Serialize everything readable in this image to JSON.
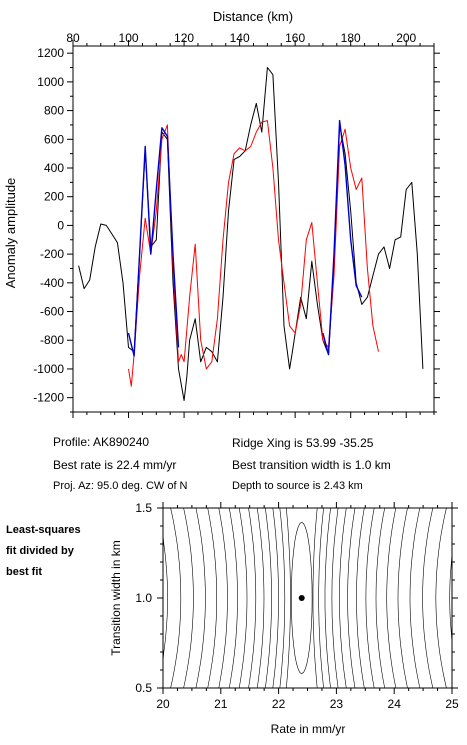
{
  "chart_data": [
    {
      "type": "line",
      "title": "",
      "xlabel": "Distance (km)",
      "ylabel": "Anomaly amplitude",
      "xlim": [
        80,
        210
      ],
      "ylim": [
        -1300,
        1250
      ],
      "x_axis_position": "top",
      "xticks": [
        80,
        100,
        120,
        140,
        160,
        180,
        200
      ],
      "yticks": [
        1200,
        1000,
        800,
        600,
        400,
        200,
        0,
        -200,
        -400,
        -600,
        -800,
        -1000,
        -1200
      ],
      "grid": false,
      "legend": "none",
      "series": [
        {
          "color": "#000000",
          "x": [
            82,
            84,
            86,
            88,
            90,
            92,
            94,
            96,
            98,
            100,
            102,
            104,
            106,
            108,
            110,
            112,
            114,
            116,
            118,
            120,
            121,
            122,
            124,
            126,
            128,
            130,
            132,
            134,
            136,
            138,
            140,
            142,
            144,
            146,
            148,
            150,
            152,
            154,
            156,
            158,
            159,
            160,
            162,
            164,
            166,
            168,
            170,
            172,
            174,
            176,
            178,
            180,
            182,
            184,
            186,
            188,
            190,
            192,
            194,
            196,
            198,
            200,
            202,
            204,
            206
          ],
          "y": [
            -280,
            -440,
            -380,
            -150,
            10,
            0,
            -60,
            -120,
            -400,
            -850,
            -880,
            -200,
            520,
            -150,
            -100,
            650,
            600,
            -400,
            -1000,
            -1220,
            -1050,
            -800,
            -650,
            -950,
            -850,
            -880,
            -950,
            -500,
            100,
            460,
            480,
            520,
            700,
            850,
            650,
            1100,
            1050,
            300,
            -700,
            -1000,
            -880,
            -750,
            -500,
            -650,
            -250,
            -550,
            -800,
            -900,
            -300,
            700,
            500,
            100,
            -400,
            -550,
            -500,
            -350,
            -200,
            -150,
            -300,
            -100,
            -80,
            250,
            300,
            -200,
            -1000
          ]
        },
        {
          "color": "#ff0000",
          "x": [
            100,
            101,
            102,
            104,
            106,
            108,
            110,
            112,
            114,
            116,
            118,
            119,
            120,
            122,
            124,
            126,
            128,
            130,
            132,
            134,
            136,
            138,
            140,
            142,
            144,
            146,
            148,
            150,
            152,
            154,
            156,
            158,
            160,
            162,
            164,
            166,
            168,
            170,
            172,
            174,
            176,
            178,
            180,
            182,
            184,
            186,
            188,
            190
          ],
          "y": [
            -1000,
            -1120,
            -900,
            -350,
            50,
            -200,
            100,
            600,
            700,
            -300,
            -950,
            -900,
            -950,
            -500,
            -130,
            -800,
            -1000,
            -950,
            -650,
            -100,
            300,
            500,
            540,
            520,
            550,
            650,
            720,
            730,
            400,
            -100,
            -400,
            -700,
            -750,
            -550,
            -100,
            20,
            -400,
            -800,
            -850,
            -350,
            550,
            670,
            400,
            250,
            330,
            -300,
            -700,
            -880
          ]
        },
        {
          "color": "#0000cc",
          "x": [
            100,
            102,
            104,
            106,
            108,
            110,
            112,
            114,
            116,
            118
          ],
          "y": [
            -750,
            -910,
            -200,
            550,
            -200,
            250,
            680,
            620,
            -200,
            -850
          ]
        },
        {
          "color": "#0000cc",
          "x": [
            170,
            172,
            174,
            176,
            178,
            180,
            182,
            184
          ],
          "y": [
            -750,
            -900,
            -200,
            730,
            420,
            -100,
            -420,
            -500
          ]
        }
      ]
    },
    {
      "type": "contour",
      "title": "",
      "xlabel": "Rate in mm/yr",
      "ylabel": "Transition width in km",
      "xlim": [
        20,
        25
      ],
      "ylim": [
        0.5,
        1.5
      ],
      "xticks": [
        20,
        21,
        22,
        23,
        24,
        25
      ],
      "yticks": [
        0.5,
        1.0,
        1.5
      ],
      "best_fit_point": {
        "x": 22.4,
        "y": 1.0
      }
    }
  ],
  "info": {
    "profile": "Profile: AK890240",
    "best_rate": "Best rate is 22.4 mm/yr",
    "proj_az": "Proj. Az: 95.0 deg. CW of N",
    "ridge_xing": "Ridge Xing is 53.99 -35.25",
    "best_width": "Best transition width is 1.0 km",
    "depth": "Depth to source is   2.43 km"
  },
  "note": [
    "Least-squares",
    "fit divided by",
    "best fit"
  ]
}
